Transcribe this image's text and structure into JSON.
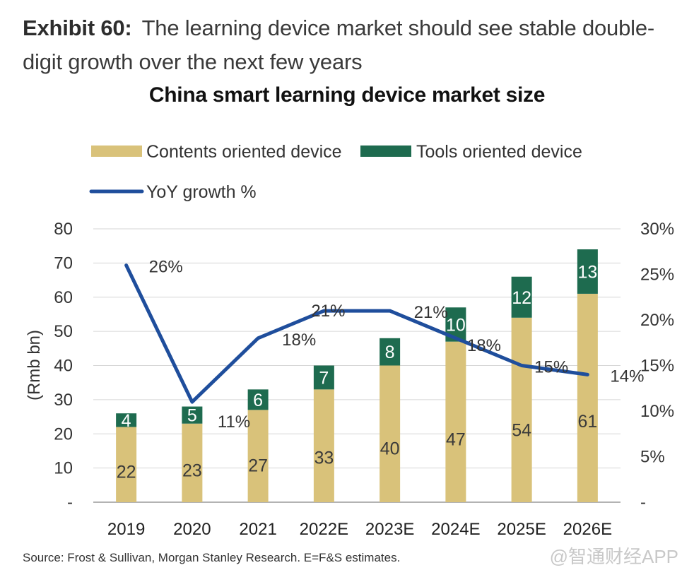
{
  "exhibit": {
    "label": "Exhibit 60:",
    "text": "The learning device market should see stable double-digit growth over the next few years"
  },
  "source": "Source: Frost & Sullivan, Morgan Stanley Research. E=F&S estimates.",
  "watermark": "@智通财经APP",
  "chart_data": {
    "type": "bar",
    "stacked": true,
    "title": "China smart learning device market size",
    "categories": [
      "2019",
      "2020",
      "2021",
      "2022E",
      "2023E",
      "2024E",
      "2025E",
      "2026E"
    ],
    "series": [
      {
        "name": "Contents oriented device",
        "kind": "bar",
        "color": "#d9c27a",
        "values": [
          22,
          23,
          27,
          33,
          40,
          47,
          54,
          61
        ]
      },
      {
        "name": "Tools oriented device",
        "kind": "bar",
        "color": "#1e6b4f",
        "values": [
          4,
          5,
          6,
          7,
          8,
          10,
          12,
          13
        ]
      },
      {
        "name": "YoY growth %",
        "kind": "line",
        "axis": "right",
        "color": "#1f4e9c",
        "values": [
          26,
          11,
          18,
          21,
          21,
          18,
          15,
          14
        ],
        "labels": [
          "26%",
          "11%",
          "18%",
          "21%",
          "21%",
          "18%",
          "15%",
          "14%"
        ]
      }
    ],
    "ylabel": "(Rmb bn)",
    "ylim": [
      0,
      80
    ],
    "yticks": [
      "-",
      "10",
      "20",
      "30",
      "40",
      "50",
      "60",
      "70",
      "80"
    ],
    "y2lim": [
      0,
      30
    ],
    "y2ticks": [
      "-",
      "5%",
      "10%",
      "15%",
      "20%",
      "25%",
      "30%"
    ],
    "grid": true,
    "legend": "top"
  }
}
